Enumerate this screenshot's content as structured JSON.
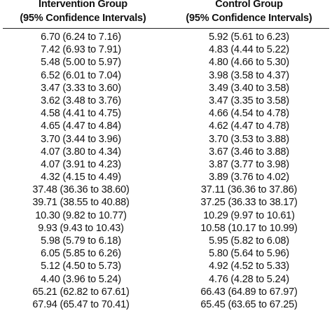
{
  "headers": {
    "intervention": [
      "Intervention Group",
      "(95% Confidence Intervals)"
    ],
    "control": [
      "Control Group",
      "(95% Confidence Intervals)"
    ]
  },
  "rows": [
    {
      "intervention": "6.70 (6.24 to 7.16)",
      "control": "5.92 (5.61 to 6.23)"
    },
    {
      "intervention": "7.42 (6.93 to 7.91)",
      "control": "4.83 (4.44 to 5.22)"
    },
    {
      "intervention": "5.48 (5.00 to 5.97)",
      "control": "4.80 (4.66 to 5.30)"
    },
    {
      "intervention": "6.52 (6.01 to 7.04)",
      "control": "3.98 (3.58 to 4.37)"
    },
    {
      "intervention": "3.47 (3.33 to 3.60)",
      "control": "3.49 (3.40 to 3.58)"
    },
    {
      "intervention": "3.62 (3.48 to 3.76)",
      "control": "3.47 (3.35 to 3.58)"
    },
    {
      "intervention": "4.58 (4.41 to 4.75)",
      "control": "4.66 (4.54 to 4.78)"
    },
    {
      "intervention": "4.65 (4.47 to 4.84)",
      "control": "4.62 (4.47 to 4.78)"
    },
    {
      "intervention": "3.70 (3.44 to 3.96)",
      "control": "3.70 (3.53 to 3.88)"
    },
    {
      "intervention": "4.07 (3.80 to 4.34)",
      "control": "3.67 (3.46 to 3.88)"
    },
    {
      "intervention": "4.07 (3.91 to 4.23)",
      "control": "3.87 (3.77 to 3.98)"
    },
    {
      "intervention": "4.32 (4.15 to 4.49)",
      "control": "3.89 (3.76 to 4.02)"
    },
    {
      "intervention": "37.48 (36.36 to 38.60)",
      "control": "37.11 (36.36 to 37.86)"
    },
    {
      "intervention": "39.71 (38.55 to 40.88)",
      "control": "37.25 (36.33 to 38.17)"
    },
    {
      "intervention": "10.30 (9.82 to 10.77)",
      "control": "10.29 (9.97 to 10.61)"
    },
    {
      "intervention": "9.93 (9.43 to 10.43)",
      "control": "10.58 (10.17 to 10.99)"
    },
    {
      "intervention": "5.98 (5.79 to 6.18)",
      "control": "5.95 (5.82 to 6.08)"
    },
    {
      "intervention": "6.05 (5.85 to 6.26)",
      "control": "5.80 (5.64 to 5.96)"
    },
    {
      "intervention": "5.12 (4.50 to 5.73)",
      "control": "4.92 (4.52 to 5.33)"
    },
    {
      "intervention": "4.40 (3.96 to 5.24)",
      "control": "4.76 (4.28 to 5.24)"
    },
    {
      "intervention": "65.21 (62.82 to 67.61)",
      "control": "66.43 (64.89 to 67.97)"
    },
    {
      "intervention": "67.94 (65.47 to 70.41)",
      "control": "65.45 (63.65 to 67.25)"
    }
  ]
}
